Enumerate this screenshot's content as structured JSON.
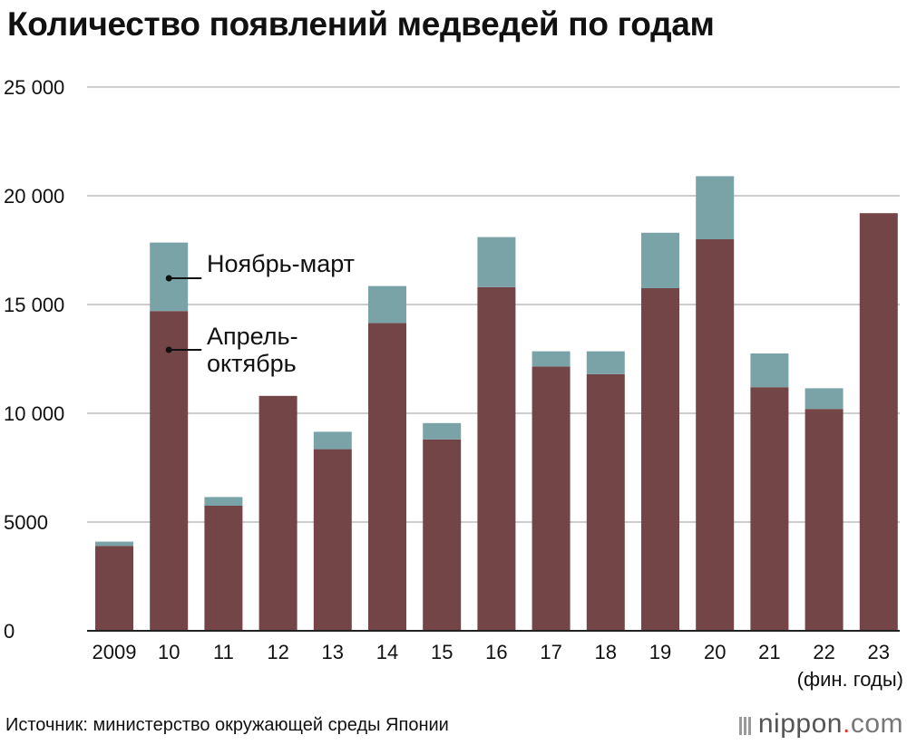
{
  "title": "Количество появлений медведей по годам",
  "unit_note": "(фин. годы)",
  "source": "Источник: министерство окружающей среды Японии",
  "brand": {
    "name": "nippon",
    "dot": ".",
    "tld": "com"
  },
  "colors": {
    "apr_oct": "#744547",
    "nov_mar": "#7aa3a8",
    "grid": "#cccccc",
    "axis": "#222222"
  },
  "chart_data": {
    "type": "bar",
    "stacked": true,
    "title": "Количество появлений медведей по годам",
    "xlabel": "(фин. годы)",
    "ylabel": "",
    "ylim": [
      0,
      25000
    ],
    "yticks": [
      0,
      5000,
      10000,
      15000,
      20000,
      25000
    ],
    "ytick_labels": [
      "0",
      "5000",
      "10 000",
      "15 000",
      "20 000",
      "25 000"
    ],
    "categories": [
      "2009",
      "10",
      "11",
      "12",
      "13",
      "14",
      "15",
      "16",
      "17",
      "18",
      "19",
      "20",
      "21",
      "22",
      "23"
    ],
    "series": [
      {
        "name": "Апрель-октябрь",
        "values": [
          3900,
          14700,
          5750,
          10800,
          8350,
          14150,
          8800,
          15800,
          12150,
          11800,
          15750,
          18000,
          11200,
          10200,
          19200
        ]
      },
      {
        "name": "Ноябрь-март",
        "values": [
          200,
          3150,
          400,
          0,
          800,
          1700,
          750,
          2300,
          700,
          1050,
          2550,
          2900,
          1550,
          950,
          0
        ]
      }
    ],
    "grid": true,
    "legend": {
      "placement": "inline",
      "labels": [
        "Ноябрь-март",
        "Апрель-октябрь"
      ]
    }
  }
}
